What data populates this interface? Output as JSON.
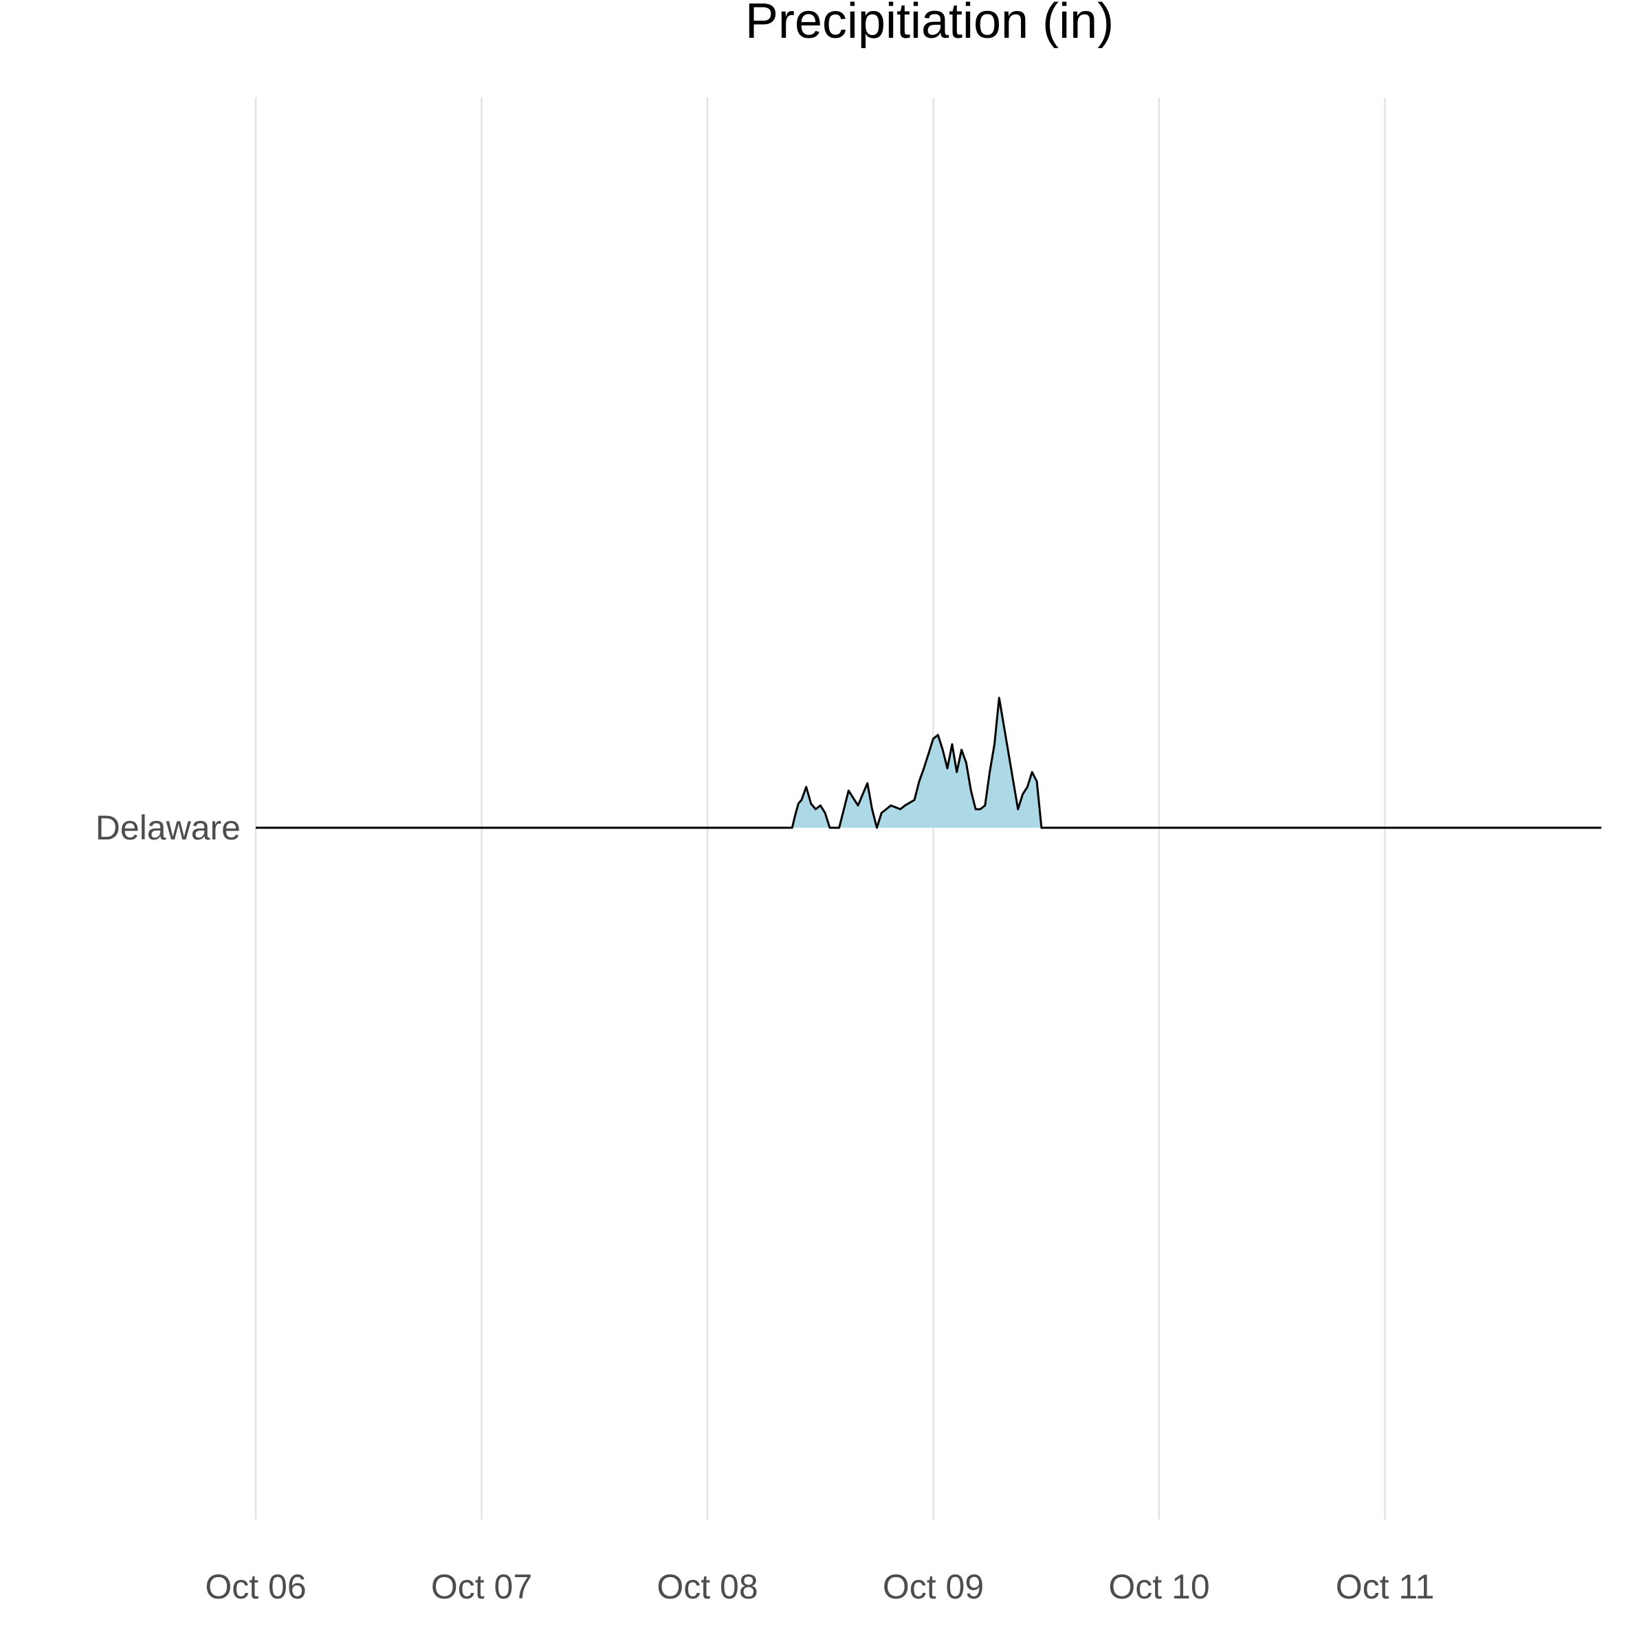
{
  "chart_data": {
    "type": "area",
    "title": "Precipitiation (in)",
    "xlabel": "",
    "ylabel": "",
    "x_tick_labels": [
      "Oct 06",
      "Oct 07",
      "Oct 08",
      "Oct 09",
      "Oct 10",
      "Oct 11"
    ],
    "y_tick_labels": [
      "Delaware"
    ],
    "xlim": [
      "2024-10-06T00:00",
      "2024-10-11T23:00"
    ],
    "ylim": [
      0,
      0.8
    ],
    "grid": "vertical major",
    "legend": "none",
    "colors": {
      "fill": "#add8e6",
      "line": "#000000",
      "grid": "#e3e3e3",
      "background": "#ffffff"
    },
    "series": [
      {
        "name": "Delaware",
        "x": [
          "2024-10-06T00:00",
          "2024-10-08T09:00",
          "2024-10-08T09:20",
          "2024-10-08T09:40",
          "2024-10-08T10:00",
          "2024-10-08T10:30",
          "2024-10-08T11:00",
          "2024-10-08T11:30",
          "2024-10-08T12:00",
          "2024-10-08T12:30",
          "2024-10-08T13:00",
          "2024-10-08T13:30",
          "2024-10-08T14:00",
          "2024-10-08T14:30",
          "2024-10-08T15:00",
          "2024-10-08T16:00",
          "2024-10-08T17:00",
          "2024-10-08T17:30",
          "2024-10-08T18:00",
          "2024-10-08T18:30",
          "2024-10-08T19:00",
          "2024-10-08T19:30",
          "2024-10-08T20:00",
          "2024-10-08T20:30",
          "2024-10-08T21:00",
          "2024-10-08T22:00",
          "2024-10-08T22:30",
          "2024-10-08T23:00",
          "2024-10-08T23:30",
          "2024-10-09T00:00",
          "2024-10-09T00:30",
          "2024-10-09T01:00",
          "2024-10-09T01:30",
          "2024-10-09T02:00",
          "2024-10-09T02:30",
          "2024-10-09T03:00",
          "2024-10-09T03:30",
          "2024-10-09T04:00",
          "2024-10-09T04:30",
          "2024-10-09T05:00",
          "2024-10-09T05:30",
          "2024-10-09T06:00",
          "2024-10-09T06:30",
          "2024-10-09T07:00",
          "2024-10-09T08:00",
          "2024-10-09T09:00",
          "2024-10-09T09:30",
          "2024-10-09T10:00",
          "2024-10-09T10:30",
          "2024-10-09T11:00",
          "2024-10-09T11:30",
          "2024-10-09T12:30",
          "2024-10-11T23:00"
        ],
        "y": [
          0,
          0,
          0.07,
          0.13,
          0.15,
          0.22,
          0.13,
          0.1,
          0.12,
          0.08,
          0,
          0,
          0,
          0.1,
          0.2,
          0.12,
          0.24,
          0.1,
          0,
          0.08,
          0.1,
          0.12,
          0.11,
          0.1,
          0.12,
          0.15,
          0.25,
          0.32,
          0.4,
          0.48,
          0.5,
          0.42,
          0.32,
          0.45,
          0.3,
          0.42,
          0.35,
          0.2,
          0.1,
          0.1,
          0.12,
          0.3,
          0.45,
          0.7,
          0.4,
          0.1,
          0.18,
          0.22,
          0.3,
          0.25,
          0,
          0,
          0
        ]
      }
    ]
  }
}
